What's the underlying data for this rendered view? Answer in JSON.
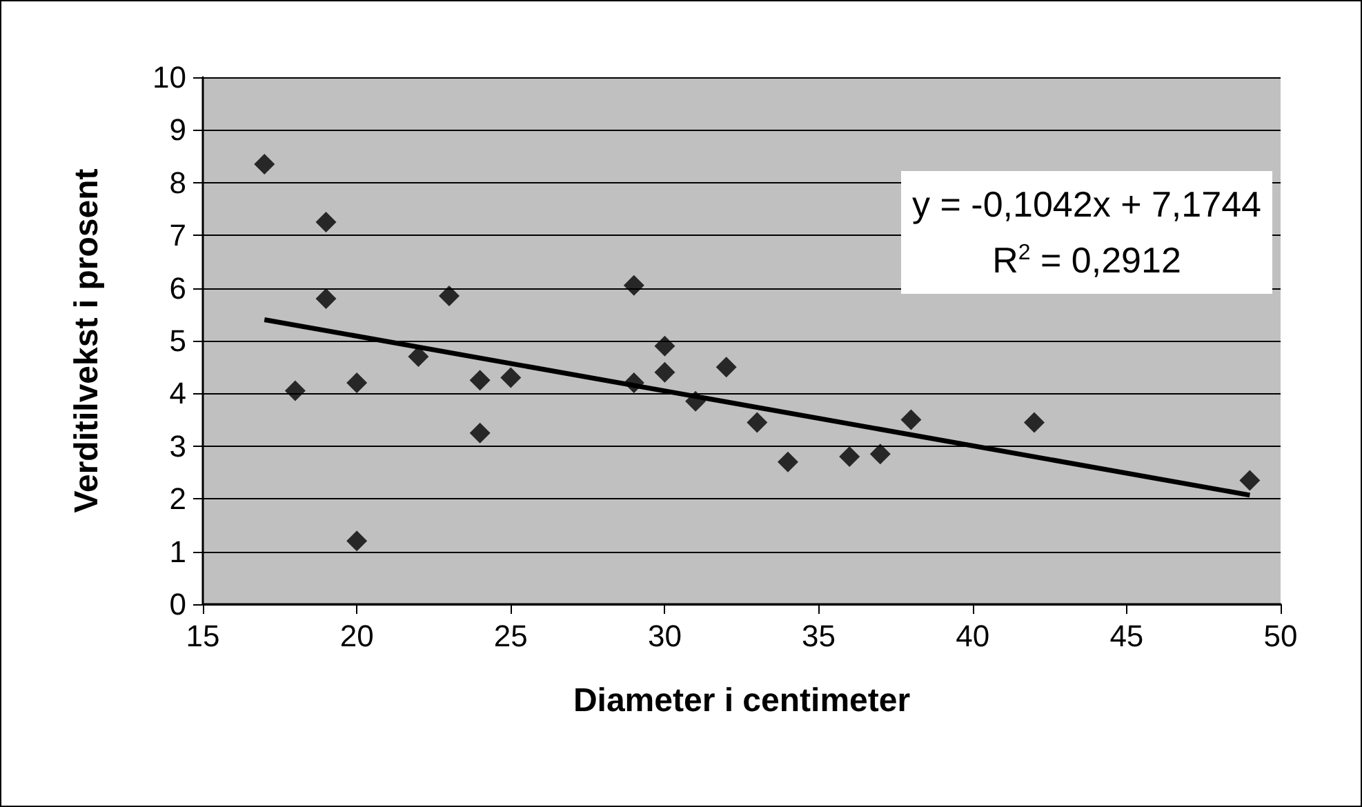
{
  "chart_data": {
    "type": "scatter",
    "xlabel": "Diameter i centimeter",
    "ylabel": "Verditilvekst i prosent",
    "xlim": [
      15,
      50
    ],
    "xticks": [
      15,
      20,
      25,
      30,
      35,
      40,
      45,
      50
    ],
    "ylim": [
      0,
      10
    ],
    "yticks": [
      0,
      1,
      2,
      3,
      4,
      5,
      6,
      7,
      8,
      9,
      10
    ],
    "grid": "y",
    "marker": "diamond",
    "series": [
      {
        "color": "#000000",
        "x": [
          17,
          18,
          19,
          19,
          20,
          20,
          22,
          23,
          24,
          24,
          25,
          29,
          29,
          30,
          30,
          31,
          32,
          33,
          34,
          36,
          37,
          38,
          42,
          49
        ],
        "values": [
          8.35,
          4.05,
          7.25,
          5.8,
          4.2,
          1.2,
          4.7,
          5.85,
          4.25,
          3.25,
          4.3,
          6.05,
          4.2,
          4.9,
          4.4,
          3.85,
          4.5,
          3.45,
          2.7,
          2.8,
          2.85,
          3.5,
          3.45,
          2.35
        ]
      },
      {
        "type": "line",
        "color": "#000000",
        "line_style": "solid",
        "marker": "none",
        "x": [
          17,
          49
        ],
        "values": [
          5.4,
          2.07
        ]
      }
    ],
    "annotations": [
      "y = -0,1042x + 7,1744",
      "R$^{2}$ = 0,2912"
    ]
  }
}
